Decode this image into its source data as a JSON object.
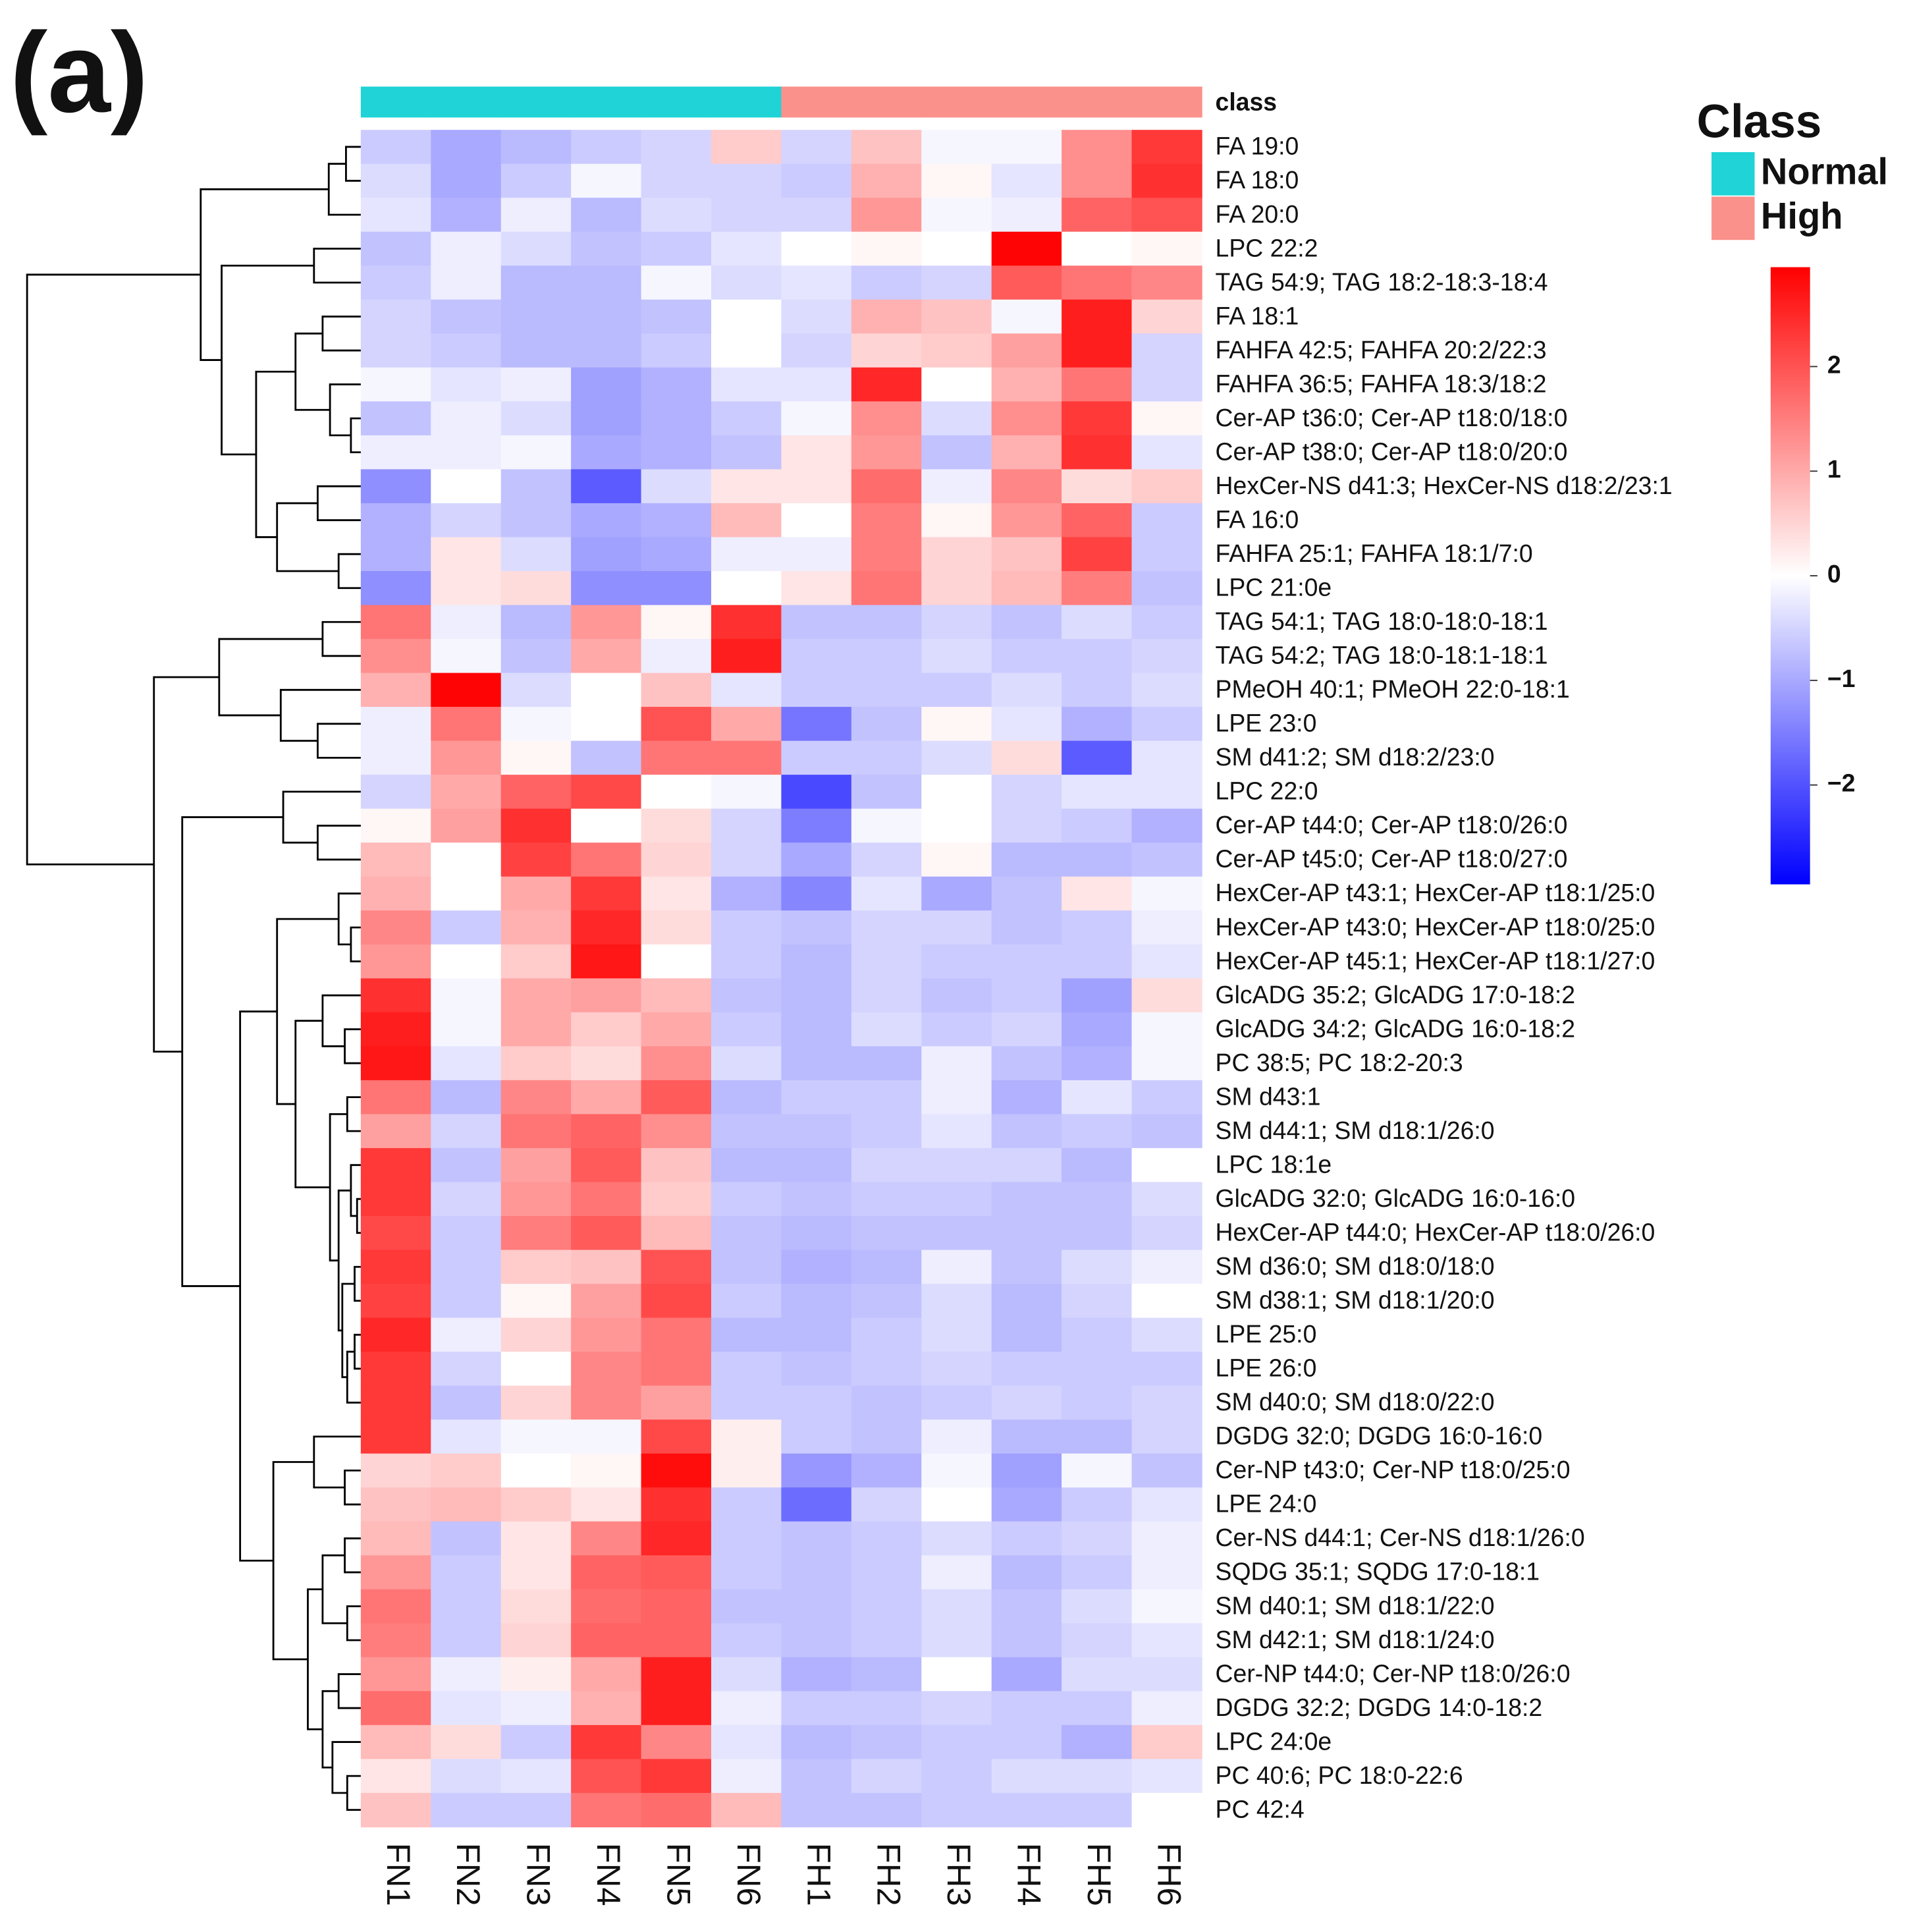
{
  "chart_data": {
    "type": "heatmap",
    "panel_label": "(a)",
    "class_label": "class",
    "legend_title": "Class",
    "classes": [
      {
        "name": "Normal",
        "color": "#1fd3d6"
      },
      {
        "name": "High",
        "color": "#fa918a"
      }
    ],
    "column_classes": [
      "Normal",
      "Normal",
      "Normal",
      "Normal",
      "Normal",
      "Normal",
      "High",
      "High",
      "High",
      "High",
      "High",
      "High"
    ],
    "columns": [
      "FN1",
      "FN2",
      "FN3",
      "FN4",
      "FN5",
      "FN6",
      "FH1",
      "FH2",
      "FH3",
      "FH4",
      "FH5",
      "FH6"
    ],
    "rows": [
      "FA 19:0",
      "FA 18:0",
      "FA 20:0",
      "LPC 22:2",
      "TAG 54:9; TAG 18:2-18:3-18:4",
      "FA 18:1",
      "FAHFA 42:5; FAHFA 20:2/22:3",
      "FAHFA 36:5; FAHFA 18:3/18:2",
      "Cer-AP t36:0; Cer-AP t18:0/18:0",
      "Cer-AP t38:0; Cer-AP t18:0/20:0",
      "HexCer-NS d41:3; HexCer-NS d18:2/23:1",
      "FA 16:0",
      "FAHFA 25:1; FAHFA 18:1/7:0",
      "LPC 21:0e",
      "TAG 54:1; TAG 18:0-18:0-18:1",
      "TAG 54:2; TAG 18:0-18:1-18:1",
      "PMeOH 40:1; PMeOH 22:0-18:1",
      "LPE 23:0",
      "SM d41:2; SM d18:2/23:0",
      "LPC 22:0",
      "Cer-AP t44:0; Cer-AP t18:0/26:0",
      "Cer-AP t45:0; Cer-AP t18:0/27:0",
      "HexCer-AP t43:1; HexCer-AP t18:1/25:0",
      "HexCer-AP t43:0; HexCer-AP t18:0/25:0",
      "HexCer-AP t45:1; HexCer-AP t18:1/27:0",
      "GlcADG 35:2; GlcADG 17:0-18:2",
      "GlcADG 34:2; GlcADG 16:0-18:2",
      "PC 38:5; PC 18:2-20:3",
      "SM d43:1",
      "SM d44:1; SM d18:1/26:0",
      "LPC 18:1e",
      "GlcADG 32:0; GlcADG 16:0-16:0",
      "HexCer-AP t44:0; HexCer-AP t18:0/26:0",
      "SM d36:0; SM d18:0/18:0",
      "SM d38:1; SM d18:1/20:0",
      "LPE 25:0",
      "LPE 26:0",
      "SM d40:0; SM d18:0/22:0",
      "DGDG 32:0; DGDG 16:0-16:0",
      "Cer-NP t43:0; Cer-NP t18:0/25:0",
      "LPE 24:0",
      "Cer-NS d44:1; Cer-NS d18:1/26:0",
      "SQDG 35:1; SQDG 17:0-18:1",
      "SM d40:1; SM d18:1/22:0",
      "SM d42:1; SM d18:1/24:0",
      "Cer-NP t44:0; Cer-NP t18:0/26:0",
      "DGDG 32:2; DGDG 14:0-18:2",
      "LPC 24:0e",
      "PC 40:6; PC 18:0-22:6",
      "PC 42:4"
    ],
    "values": [
      [
        -0.6,
        -1.0,
        -0.8,
        -0.6,
        -0.5,
        0.6,
        -0.5,
        0.7,
        -0.1,
        -0.1,
        1.3,
        2.3
      ],
      [
        -0.4,
        -1.0,
        -0.6,
        -0.1,
        -0.5,
        -0.5,
        -0.6,
        0.9,
        0.1,
        -0.3,
        1.3,
        2.4
      ],
      [
        -0.3,
        -0.9,
        -0.2,
        -0.8,
        -0.4,
        -0.5,
        -0.5,
        1.2,
        -0.1,
        -0.2,
        1.8,
        2.0
      ],
      [
        -0.7,
        -0.2,
        -0.4,
        -0.7,
        -0.6,
        -0.3,
        0,
        0.1,
        0,
        2.9,
        0,
        0.1
      ],
      [
        -0.6,
        -0.2,
        -0.8,
        -0.8,
        -0.1,
        -0.4,
        -0.3,
        -0.6,
        -0.5,
        1.9,
        1.6,
        1.4
      ],
      [
        -0.5,
        -0.7,
        -0.8,
        -0.8,
        -0.7,
        0,
        -0.4,
        0.9,
        0.7,
        -0.1,
        2.6,
        0.5
      ],
      [
        -0.5,
        -0.6,
        -0.8,
        -0.8,
        -0.6,
        0,
        -0.5,
        0.5,
        0.6,
        1.1,
        2.6,
        -0.5
      ],
      [
        -0.1,
        -0.3,
        -0.2,
        -1.1,
        -0.9,
        -0.3,
        -0.3,
        2.5,
        0,
        0.9,
        1.6,
        -0.5
      ],
      [
        -0.7,
        -0.2,
        -0.4,
        -1.1,
        -0.9,
        -0.6,
        -0.1,
        1.3,
        -0.4,
        1.3,
        2.3,
        0.1
      ],
      [
        -0.2,
        -0.2,
        -0.1,
        -1.0,
        -0.9,
        -0.7,
        0.3,
        1.2,
        -0.7,
        0.9,
        2.4,
        -0.3
      ],
      [
        -1.3,
        0,
        -0.7,
        -1.9,
        -0.4,
        0.3,
        0.3,
        1.7,
        -0.2,
        1.4,
        0.4,
        0.6
      ],
      [
        -0.9,
        -0.5,
        -0.7,
        -1.0,
        -0.9,
        0.8,
        0,
        1.5,
        0.1,
        1.2,
        1.8,
        -0.6
      ],
      [
        -0.9,
        0.3,
        -0.4,
        -1.1,
        -1.0,
        -0.2,
        -0.2,
        1.5,
        0.5,
        0.7,
        2.2,
        -0.6
      ],
      [
        -1.3,
        0.3,
        0.4,
        -1.3,
        -1.3,
        0,
        0.3,
        1.6,
        0.5,
        0.8,
        1.5,
        -0.7
      ],
      [
        1.6,
        -0.2,
        -0.8,
        1.2,
        0.1,
        2.4,
        -0.7,
        -0.7,
        -0.5,
        -0.7,
        -0.4,
        -0.6
      ],
      [
        1.3,
        -0.1,
        -0.7,
        1.0,
        -0.2,
        2.6,
        -0.6,
        -0.6,
        -0.4,
        -0.6,
        -0.6,
        -0.5
      ],
      [
        0.9,
        2.9,
        -0.4,
        0,
        0.7,
        -0.3,
        -0.6,
        -0.6,
        -0.6,
        -0.4,
        -0.6,
        -0.4
      ],
      [
        -0.2,
        1.6,
        -0.1,
        0,
        2.0,
        1.0,
        -1.6,
        -0.7,
        0.1,
        -0.3,
        -0.9,
        -0.6
      ],
      [
        -0.2,
        1.2,
        0.1,
        -0.7,
        1.6,
        1.6,
        -0.6,
        -0.6,
        -0.4,
        0.4,
        -1.9,
        -0.3
      ],
      [
        -0.5,
        1.0,
        1.8,
        2.1,
        0,
        -0.1,
        -2.1,
        -0.7,
        0,
        -0.5,
        -0.3,
        -0.3
      ],
      [
        0.1,
        1.1,
        2.4,
        0,
        0.4,
        -0.5,
        -1.5,
        -0.1,
        0,
        -0.5,
        -0.6,
        -0.9
      ],
      [
        0.8,
        0,
        2.2,
        1.6,
        0.5,
        -0.5,
        -1.0,
        -0.5,
        0.1,
        -0.8,
        -0.8,
        -0.7
      ],
      [
        0.9,
        0,
        1.0,
        2.3,
        0.3,
        -0.9,
        -1.4,
        -0.3,
        -1.0,
        -0.7,
        0.3,
        -0.1
      ],
      [
        1.4,
        -0.6,
        0.9,
        2.5,
        0.4,
        -0.6,
        -0.7,
        -0.5,
        -0.5,
        -0.7,
        -0.6,
        -0.2
      ],
      [
        1.2,
        0,
        0.6,
        2.7,
        0,
        -0.6,
        -0.8,
        -0.5,
        -0.6,
        -0.6,
        -0.6,
        -0.3
      ],
      [
        2.4,
        -0.1,
        1.0,
        1.1,
        0.8,
        -0.7,
        -0.8,
        -0.5,
        -0.7,
        -0.6,
        -1.1,
        0.4
      ],
      [
        2.6,
        -0.1,
        1.0,
        0.6,
        1.0,
        -0.6,
        -0.8,
        -0.4,
        -0.6,
        -0.5,
        -1.0,
        -0.1
      ],
      [
        2.7,
        -0.3,
        0.6,
        0.4,
        1.3,
        -0.4,
        -0.8,
        -0.8,
        -0.2,
        -0.7,
        -0.9,
        -0.1
      ],
      [
        1.6,
        -0.8,
        1.4,
        1.0,
        1.9,
        -0.8,
        -0.6,
        -0.6,
        -0.2,
        -0.9,
        -0.3,
        -0.6
      ],
      [
        1.1,
        -0.5,
        1.6,
        1.8,
        1.3,
        -0.7,
        -0.7,
        -0.6,
        -0.3,
        -0.7,
        -0.6,
        -0.7
      ],
      [
        2.3,
        -0.7,
        1.1,
        1.9,
        0.7,
        -0.8,
        -0.8,
        -0.5,
        -0.5,
        -0.5,
        -0.8,
        0
      ],
      [
        2.3,
        -0.5,
        1.2,
        1.6,
        0.6,
        -0.6,
        -0.7,
        -0.6,
        -0.6,
        -0.7,
        -0.7,
        -0.4
      ],
      [
        2.1,
        -0.6,
        1.5,
        1.9,
        0.8,
        -0.7,
        -0.8,
        -0.7,
        -0.7,
        -0.7,
        -0.7,
        -0.5
      ],
      [
        2.3,
        -0.6,
        0.6,
        0.7,
        2.0,
        -0.7,
        -0.9,
        -0.8,
        -0.2,
        -0.7,
        -0.4,
        -0.2
      ],
      [
        2.2,
        -0.6,
        0.1,
        1.1,
        2.1,
        -0.6,
        -0.8,
        -0.7,
        -0.4,
        -0.8,
        -0.5,
        0
      ],
      [
        2.5,
        -0.2,
        0.5,
        1.2,
        1.6,
        -0.8,
        -0.8,
        -0.6,
        -0.4,
        -0.8,
        -0.6,
        -0.4
      ],
      [
        2.3,
        -0.5,
        0,
        1.4,
        1.6,
        -0.6,
        -0.7,
        -0.6,
        -0.5,
        -0.6,
        -0.6,
        -0.6
      ],
      [
        2.3,
        -0.7,
        0.5,
        1.4,
        1.1,
        -0.6,
        -0.6,
        -0.7,
        -0.6,
        -0.5,
        -0.6,
        -0.5
      ],
      [
        2.3,
        -0.3,
        -0.1,
        -0.1,
        2.1,
        0.2,
        -0.6,
        -0.7,
        -0.2,
        -0.8,
        -0.8,
        -0.5
      ],
      [
        0.5,
        0.6,
        0,
        0.1,
        2.8,
        0.2,
        -1.2,
        -0.9,
        -0.1,
        -1.1,
        -0.1,
        -0.7
      ],
      [
        0.7,
        0.8,
        0.6,
        0.3,
        2.4,
        -0.6,
        -1.7,
        -0.5,
        0,
        -1.0,
        -0.6,
        -0.3
      ],
      [
        0.8,
        -0.7,
        0.3,
        1.4,
        2.5,
        -0.6,
        -0.7,
        -0.6,
        -0.4,
        -0.6,
        -0.5,
        -0.2
      ],
      [
        1.2,
        -0.6,
        0.3,
        1.8,
        1.9,
        -0.6,
        -0.7,
        -0.6,
        -0.2,
        -0.8,
        -0.6,
        -0.2
      ],
      [
        1.6,
        -0.6,
        0.4,
        1.7,
        1.8,
        -0.7,
        -0.7,
        -0.6,
        -0.4,
        -0.7,
        -0.4,
        -0.1
      ],
      [
        1.5,
        -0.6,
        0.5,
        1.8,
        1.8,
        -0.6,
        -0.7,
        -0.6,
        -0.4,
        -0.7,
        -0.5,
        -0.3
      ],
      [
        1.2,
        -0.2,
        0.2,
        1.0,
        2.6,
        -0.4,
        -0.9,
        -0.8,
        0,
        -1.0,
        -0.4,
        -0.4
      ],
      [
        1.7,
        -0.3,
        -0.2,
        0.9,
        2.6,
        -0.2,
        -0.6,
        -0.6,
        -0.5,
        -0.6,
        -0.6,
        -0.2
      ],
      [
        0.8,
        0.4,
        -0.6,
        2.3,
        1.4,
        -0.3,
        -0.8,
        -0.7,
        -0.6,
        -0.6,
        -0.9,
        0.6
      ],
      [
        0.3,
        -0.4,
        -0.3,
        2.0,
        2.3,
        -0.2,
        -0.7,
        -0.5,
        -0.6,
        -0.4,
        -0.4,
        -0.3
      ],
      [
        0.7,
        -0.6,
        -0.6,
        1.6,
        1.7,
        0.8,
        -0.7,
        -0.7,
        -0.6,
        -0.6,
        -0.6,
        0
      ]
    ],
    "colorbar": {
      "lim": [
        -2.95,
        2.95
      ],
      "colors": [
        "#0000ff",
        "#ffffff",
        "#ff0000"
      ],
      "ticks": [
        {
          "value": -2,
          "label": "−2"
        },
        {
          "value": -1,
          "label": "−1"
        },
        0,
        1,
        2
      ]
    }
  }
}
